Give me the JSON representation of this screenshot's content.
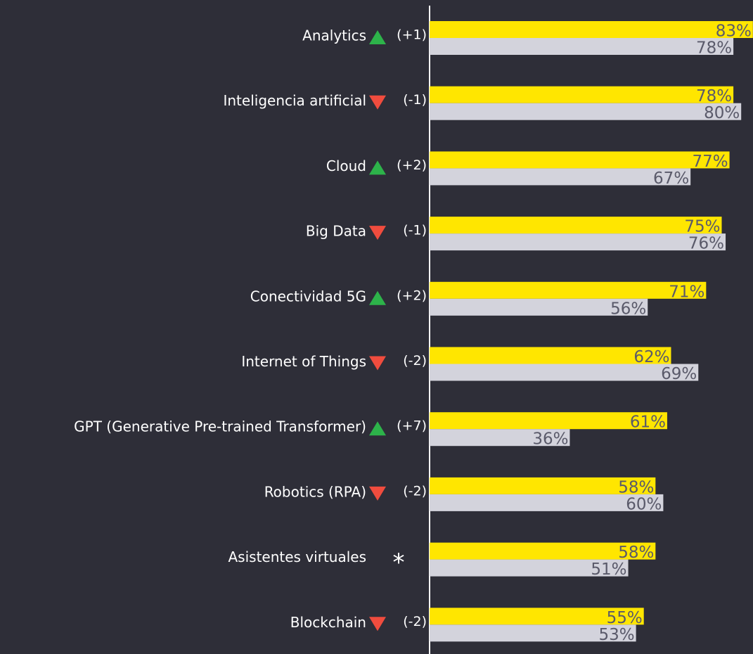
{
  "chart_data": {
    "type": "hbar",
    "categories": [
      "Analytics",
      "Inteligencia artificial",
      "Cloud",
      "Big Data",
      "Conectividad 5G",
      "Internet of Things",
      "GPT (Generative Pre-trained Transformer)",
      "Robotics (RPA)",
      "Asistentes virtuales",
      "Blockchain"
    ],
    "trend": [
      "up",
      "down",
      "up",
      "down",
      "up",
      "down",
      "up",
      "down",
      null,
      "down"
    ],
    "trend_colors": {
      "up": "#2db34a",
      "down": "#f04c3e"
    },
    "changes": [
      "(+1)",
      "(-1)",
      "(+2)",
      "(-1)",
      "(+2)",
      "(-2)",
      "(+7)",
      "(-2)",
      "*",
      "(-2)"
    ],
    "xlim": [
      0,
      100
    ],
    "series": [
      {
        "color": "#ffe600",
        "label_color": "#5a5a6a",
        "values": [
          83,
          78,
          77,
          75,
          71,
          62,
          61,
          58,
          58,
          55
        ],
        "value_labels": [
          "83%",
          "78%",
          "77%",
          "75%",
          "71%",
          "62%",
          "61%",
          "58%",
          "58%",
          "55%"
        ]
      },
      {
        "color": "#d3d3dc",
        "label_color": "#5a5a6a",
        "values": [
          78,
          80,
          67,
          76,
          56,
          69,
          36,
          60,
          51,
          53
        ],
        "value_labels": [
          "78%",
          "80%",
          "67%",
          "76%",
          "56%",
          "69%",
          "36%",
          "60%",
          "51%",
          "53%"
        ]
      }
    ]
  }
}
